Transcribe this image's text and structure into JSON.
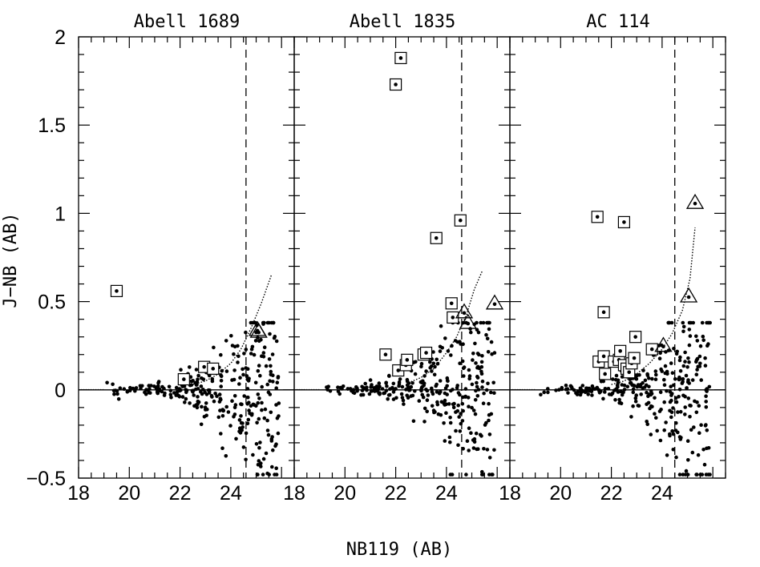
{
  "chart_data": {
    "type": "scatter",
    "xlabel": "NB119 (AB)",
    "ylabel": "J−NB (AB)",
    "xlim": [
      18,
      26.5
    ],
    "ylim": [
      -0.5,
      2
    ],
    "xticks": [
      18,
      20,
      22,
      24
    ],
    "yticks": [
      -0.5,
      0,
      0.5,
      1,
      1.5,
      2
    ],
    "ytick_labels": [
      "−0.5",
      "0",
      "0.5",
      "1",
      "1.5",
      "2"
    ],
    "grid": false,
    "panels": [
      {
        "title": "Abell 1689",
        "limit_x": 24.6,
        "squares": [
          [
            19.5,
            0.56
          ],
          [
            22.15,
            0.06
          ],
          [
            22.95,
            0.13
          ],
          [
            23.3,
            0.12
          ]
        ],
        "triangles": [
          [
            25.05,
            0.34
          ],
          [
            25.1,
            0.33
          ]
        ],
        "threshold_curve": [
          [
            22.5,
            0.03
          ],
          [
            23.0,
            0.05
          ],
          [
            23.5,
            0.09
          ],
          [
            24.0,
            0.15
          ],
          [
            24.4,
            0.23
          ],
          [
            24.8,
            0.35
          ],
          [
            25.2,
            0.49
          ],
          [
            25.6,
            0.65
          ]
        ]
      },
      {
        "title": "Abell 1835",
        "limit_x": 24.6,
        "squares": [
          [
            22.0,
            1.73
          ],
          [
            22.2,
            1.88
          ],
          [
            21.6,
            0.2
          ],
          [
            22.1,
            0.11
          ],
          [
            22.4,
            0.14
          ],
          [
            22.45,
            0.17
          ],
          [
            23.1,
            0.2
          ],
          [
            23.2,
            0.21
          ],
          [
            23.6,
            0.86
          ],
          [
            24.2,
            0.49
          ],
          [
            24.25,
            0.41
          ],
          [
            24.55,
            0.96
          ]
        ],
        "triangles": [
          [
            24.7,
            0.44
          ],
          [
            24.85,
            0.38
          ],
          [
            25.9,
            0.49
          ]
        ],
        "threshold_curve": [
          [
            22.5,
            0.04
          ],
          [
            23.0,
            0.07
          ],
          [
            23.5,
            0.12
          ],
          [
            24.0,
            0.21
          ],
          [
            24.4,
            0.3
          ],
          [
            24.8,
            0.43
          ],
          [
            25.1,
            0.57
          ],
          [
            25.4,
            0.67
          ]
        ]
      },
      {
        "title": "AC 114",
        "limit_x": 24.5,
        "squares": [
          [
            21.45,
            0.98
          ],
          [
            22.5,
            0.95
          ],
          [
            21.7,
            0.44
          ],
          [
            21.5,
            0.16
          ],
          [
            21.7,
            0.19
          ],
          [
            21.75,
            0.09
          ],
          [
            22.1,
            0.16
          ],
          [
            22.3,
            0.17
          ],
          [
            22.35,
            0.22
          ],
          [
            22.5,
            0.14
          ],
          [
            22.6,
            0.12
          ],
          [
            22.7,
            0.1
          ],
          [
            22.8,
            0.15
          ],
          [
            22.9,
            0.18
          ],
          [
            22.95,
            0.3
          ],
          [
            23.6,
            0.23
          ]
        ],
        "triangles": [
          [
            24.05,
            0.25
          ],
          [
            25.05,
            0.53
          ],
          [
            25.3,
            1.06
          ]
        ],
        "threshold_curve": [
          [
            22.0,
            0.03
          ],
          [
            22.5,
            0.05
          ],
          [
            23.0,
            0.09
          ],
          [
            23.5,
            0.15
          ],
          [
            24.0,
            0.23
          ],
          [
            24.4,
            0.32
          ],
          [
            24.8,
            0.45
          ],
          [
            25.1,
            0.63
          ],
          [
            25.3,
            0.92
          ]
        ]
      }
    ]
  }
}
